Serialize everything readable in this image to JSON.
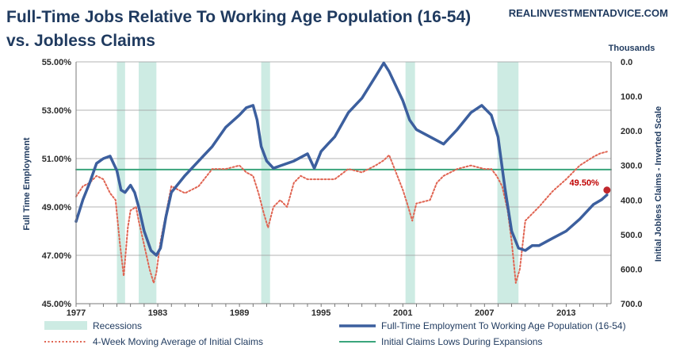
{
  "chart_data": {
    "type": "line",
    "title_line1": "Full-Time Jobs Relative To Working Age Population (16-54)",
    "title_line2": "vs. Jobless Claims",
    "source": "REALINVESTMENTADVICE.COM",
    "ylabel_left": "Full Time Employment",
    "ylabel_right": "Initial Jobless Claims - Inverted Scale",
    "right_units": "Thousands",
    "xlim": [
      1977,
      2016.3
    ],
    "ylim_left": [
      45,
      55
    ],
    "ylim_right": [
      700,
      0
    ],
    "x_ticks": [
      "1977",
      "1983",
      "1989",
      "1995",
      "2001",
      "2007",
      "2013"
    ],
    "y_ticks_left": [
      "45.00%",
      "47.00%",
      "49.00%",
      "51.00%",
      "53.00%",
      "55.00%"
    ],
    "y_ticks_right": [
      "700.0",
      "600.0",
      "500.0",
      "400.0",
      "300.0",
      "200.0",
      "100.0",
      "0.0"
    ],
    "grid": "horizontal",
    "legend_position": "bottom",
    "recessions": [
      [
        1980.0,
        1980.6
      ],
      [
        1981.6,
        1982.9
      ],
      [
        1990.6,
        1991.25
      ],
      [
        2001.2,
        2001.9
      ],
      [
        2007.95,
        2009.5
      ]
    ],
    "series": [
      {
        "name": "Full-Time Employment To Working Age Population (16-54)",
        "axis": "left",
        "color": "#3c5f9e",
        "x": [
          1977.0,
          1977.5,
          1978.0,
          1978.5,
          1979.0,
          1979.5,
          1980.0,
          1980.3,
          1980.6,
          1981.0,
          1981.3,
          1981.6,
          1982.0,
          1982.5,
          1982.9,
          1983.2,
          1983.6,
          1984.0,
          1985.0,
          1986.0,
          1987.0,
          1988.0,
          1989.0,
          1989.5,
          1990.0,
          1990.3,
          1990.6,
          1991.0,
          1991.5,
          1992.0,
          1993.0,
          1994.0,
          1994.5,
          1995.0,
          1995.5,
          1996.0,
          1997.0,
          1998.0,
          1999.0,
          1999.6,
          2000.0,
          2000.5,
          2001.0,
          2001.5,
          2002.0,
          2003.0,
          2004.0,
          2005.0,
          2006.0,
          2006.8,
          2007.5,
          2008.0,
          2008.5,
          2009.0,
          2009.5,
          2010.0,
          2010.5,
          2011.0,
          2012.0,
          2013.0,
          2014.0,
          2015.0,
          2015.6,
          2016.0
        ],
        "values": [
          48.4,
          49.3,
          50.0,
          50.8,
          51.0,
          51.1,
          50.5,
          49.7,
          49.6,
          49.9,
          49.6,
          49.0,
          48.0,
          47.2,
          47.0,
          47.3,
          48.6,
          49.6,
          50.3,
          50.9,
          51.5,
          52.3,
          52.8,
          53.1,
          53.2,
          52.6,
          51.5,
          50.9,
          50.6,
          50.7,
          50.9,
          51.2,
          50.6,
          51.3,
          51.6,
          51.9,
          52.9,
          53.5,
          54.4,
          54.95,
          54.6,
          54.0,
          53.4,
          52.6,
          52.2,
          51.9,
          51.6,
          52.2,
          52.9,
          53.2,
          52.8,
          51.9,
          49.8,
          48.0,
          47.3,
          47.2,
          47.4,
          47.4,
          47.7,
          48.0,
          48.5,
          49.1,
          49.3,
          49.5
        ]
      },
      {
        "name": "4-Week Moving Average of Initial Claims",
        "axis": "right",
        "color": "#e06452",
        "x": [
          1977.0,
          1977.5,
          1978.0,
          1978.5,
          1979.0,
          1979.5,
          1979.9,
          1980.2,
          1980.5,
          1980.8,
          1981.0,
          1981.4,
          1981.6,
          1982.0,
          1982.4,
          1982.7,
          1982.9,
          1983.2,
          1983.6,
          1984.0,
          1985.0,
          1986.0,
          1987.0,
          1988.0,
          1989.0,
          1989.5,
          1990.0,
          1990.4,
          1990.8,
          1991.1,
          1991.5,
          1992.0,
          1992.5,
          1993.0,
          1993.5,
          1994.0,
          1995.0,
          1996.0,
          1997.0,
          1998.0,
          1999.0,
          1999.6,
          2000.0,
          2000.5,
          2001.0,
          2001.4,
          2001.7,
          2002.0,
          2003.0,
          2003.5,
          2004.0,
          2005.0,
          2006.0,
          2006.5,
          2007.0,
          2007.5,
          2007.9,
          2008.3,
          2008.7,
          2009.0,
          2009.3,
          2009.6,
          2010.0,
          2011.0,
          2012.0,
          2013.0,
          2014.0,
          2015.0,
          2015.5,
          2016.0
        ],
        "values": [
          390,
          360,
          350,
          330,
          340,
          380,
          400,
          520,
          620,
          480,
          430,
          420,
          460,
          530,
          600,
          640,
          610,
          520,
          440,
          360,
          380,
          360,
          310,
          310,
          300,
          320,
          330,
          380,
          440,
          480,
          420,
          400,
          420,
          350,
          330,
          340,
          340,
          340,
          310,
          320,
          300,
          285,
          270,
          320,
          370,
          420,
          460,
          410,
          400,
          350,
          330,
          310,
          300,
          305,
          310,
          310,
          330,
          360,
          430,
          520,
          640,
          600,
          460,
          420,
          375,
          340,
          300,
          275,
          265,
          260
        ]
      },
      {
        "name": "Initial Claims Lows During Expansions",
        "axis": "right",
        "color": "#3aa57c",
        "x": [
          1977,
          2016.3
        ],
        "values": [
          312,
          312
        ]
      }
    ],
    "annotations": [
      {
        "text": "49.50%",
        "x": 2016.0,
        "y": 49.5,
        "axis": "left"
      }
    ],
    "legend": [
      {
        "label": "Recessions",
        "kind": "box",
        "color": "#cdebe3"
      },
      {
        "label": "Full-Time Employment To Working Age Population (16-54)",
        "kind": "line",
        "color": "#3c5f9e"
      },
      {
        "label": "4-Week Moving Average of Initial Claims",
        "kind": "dotted",
        "color": "#e06452"
      },
      {
        "label": "Initial Claims Lows During Expansions",
        "kind": "line",
        "color": "#3aa57c"
      }
    ]
  }
}
